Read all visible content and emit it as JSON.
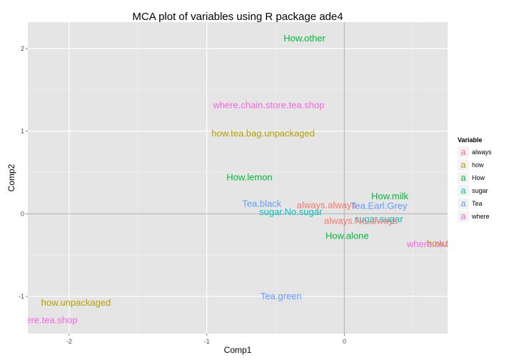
{
  "chart_data": {
    "type": "scatter",
    "title": "MCA plot of variables using R package ade4",
    "xlabel": "Comp1",
    "ylabel": "Comp2",
    "xlim": [
      -2.3,
      0.75
    ],
    "ylim": [
      -1.45,
      2.32
    ],
    "xticks": [
      {
        "value": -2,
        "label": "-2"
      },
      {
        "value": -1,
        "label": "-1"
      },
      {
        "value": 0,
        "label": "0"
      }
    ],
    "yticks": [
      {
        "value": -1,
        "label": "-1"
      },
      {
        "value": 0,
        "label": "0"
      },
      {
        "value": 1,
        "label": "1"
      },
      {
        "value": 2,
        "label": "2"
      }
    ],
    "grid": true,
    "reference_lines": [
      0,
      0
    ],
    "legend": {
      "title": "Variable",
      "position": "right",
      "glyph": "a",
      "entries": [
        {
          "name": "always",
          "color": "#F8766D"
        },
        {
          "name": "how",
          "color": "#B79F00"
        },
        {
          "name": "How",
          "color": "#00BA38"
        },
        {
          "name": "sugar",
          "color": "#00BFC4"
        },
        {
          "name": "Tea",
          "color": "#619CFF"
        },
        {
          "name": "where",
          "color": "#F564E3"
        }
      ]
    },
    "points": [
      {
        "label": "How.other",
        "x": -0.29,
        "y": 2.13,
        "group": "How"
      },
      {
        "label": "where.chain.store.tea.shop",
        "x": -0.55,
        "y": 1.32,
        "group": "where"
      },
      {
        "label": "how.tea.bag.unpackaged",
        "x": -0.59,
        "y": 0.98,
        "group": "how"
      },
      {
        "label": "How.lemon",
        "x": -0.69,
        "y": 0.45,
        "group": "How"
      },
      {
        "label": "How.milk",
        "x": 0.33,
        "y": 0.22,
        "group": "How"
      },
      {
        "label": "Tea.black",
        "x": -0.6,
        "y": 0.13,
        "group": "Tea"
      },
      {
        "label": "always.always",
        "x": -0.13,
        "y": 0.11,
        "group": "always"
      },
      {
        "label": "Tea.Earl.Grey",
        "x": 0.25,
        "y": 0.1,
        "group": "Tea"
      },
      {
        "label": "sugar.No.sugar",
        "x": -0.39,
        "y": 0.03,
        "group": "sugar"
      },
      {
        "label": "sugar.sugar",
        "x": 0.25,
        "y": -0.06,
        "group": "sugar"
      },
      {
        "label": "always.No.always",
        "x": 0.12,
        "y": -0.08,
        "group": "always"
      },
      {
        "label": "How.alone",
        "x": 0.02,
        "y": -0.26,
        "group": "How"
      },
      {
        "label": "how.tea.bag",
        "x": 0.78,
        "y": -0.35,
        "group": "how"
      },
      {
        "label": "where.chain.store",
        "x": 0.72,
        "y": -0.36,
        "group": "where"
      },
      {
        "label": "Tea.green",
        "x": -0.46,
        "y": -0.99,
        "group": "Tea"
      },
      {
        "label": "how.unpackaged",
        "x": -1.95,
        "y": -1.07,
        "group": "how"
      },
      {
        "label": "where.tea.shop",
        "x": -2.17,
        "y": -1.28,
        "group": "where"
      }
    ]
  }
}
